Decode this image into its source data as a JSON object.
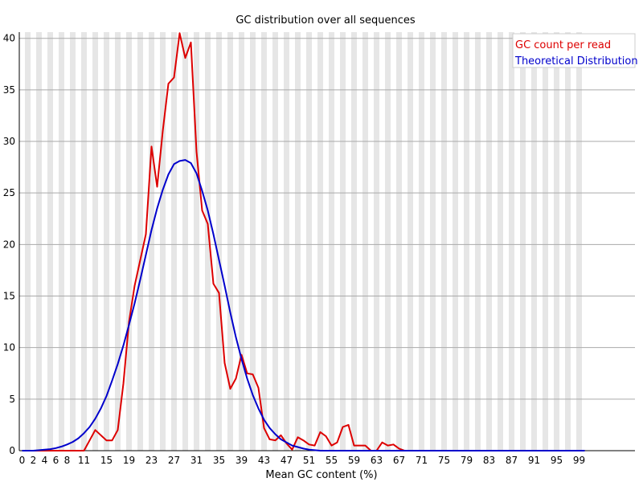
{
  "chart_data": {
    "type": "line",
    "title": "GC distribution over all sequences",
    "xlabel": "Mean GC content (%)",
    "ylabel": "",
    "xlim": [
      0,
      100
    ],
    "ylim": [
      0,
      40.6
    ],
    "x_ticks": [
      0,
      2,
      4,
      6,
      8,
      11,
      15,
      19,
      23,
      27,
      31,
      35,
      39,
      43,
      47,
      51,
      55,
      59,
      63,
      67,
      71,
      75,
      79,
      83,
      87,
      91,
      95,
      99
    ],
    "y_ticks": [
      0,
      5,
      10,
      15,
      20,
      25,
      30,
      35,
      40
    ],
    "grid": true,
    "legend_position": "top-right",
    "series": [
      {
        "name": "GC count per read",
        "color": "#dd0000",
        "x": [
          0,
          1,
          2,
          3,
          4,
          5,
          6,
          7,
          8,
          9,
          10,
          11,
          12,
          13,
          14,
          15,
          16,
          17,
          18,
          19,
          20,
          21,
          22,
          23,
          24,
          25,
          26,
          27,
          28,
          29,
          30,
          31,
          32,
          33,
          34,
          35,
          36,
          37,
          38,
          39,
          40,
          41,
          42,
          43,
          44,
          45,
          46,
          47,
          48,
          49,
          50,
          51,
          52,
          53,
          54,
          55,
          56,
          57,
          58,
          59,
          60,
          61,
          62,
          63,
          64,
          65,
          66,
          67,
          68,
          69,
          70,
          71,
          72,
          73,
          74,
          75,
          76,
          77,
          78,
          79,
          80,
          81,
          82,
          83,
          84,
          85,
          86,
          87,
          88,
          89,
          90,
          91,
          92,
          93,
          94,
          95,
          96,
          97,
          98,
          99,
          100
        ],
        "values": [
          0,
          0,
          0,
          0,
          0,
          0,
          0,
          0,
          0,
          0,
          0,
          0,
          1,
          2,
          1.5,
          1,
          1,
          2,
          6.5,
          12.5,
          16,
          18.5,
          21,
          29.5,
          25.6,
          31,
          35.6,
          36.2,
          40.5,
          38.1,
          39.6,
          29,
          23.3,
          22,
          16.2,
          15.3,
          8.5,
          6,
          7,
          9.3,
          7.5,
          7.4,
          6.1,
          2.2,
          1.1,
          1,
          1.5,
          0.7,
          0.1,
          1.3,
          1,
          0.6,
          0.5,
          1.8,
          1.4,
          0.5,
          0.8,
          2.3,
          2.5,
          0.5,
          0.5,
          0.5,
          0,
          0,
          0.8,
          0.5,
          0.6,
          0.2,
          0,
          0,
          0,
          0,
          0,
          0,
          0,
          0,
          0,
          0,
          0,
          0,
          0,
          0,
          0,
          0,
          0,
          0,
          0,
          0,
          0,
          0,
          0,
          0,
          0,
          0,
          0,
          0,
          0,
          0,
          0,
          0,
          0
        ]
      },
      {
        "name": "Theoretical Distribution",
        "color": "#0000cc",
        "x": [
          0,
          1,
          2,
          3,
          4,
          5,
          6,
          7,
          8,
          9,
          10,
          11,
          12,
          13,
          14,
          15,
          16,
          17,
          18,
          19,
          20,
          21,
          22,
          23,
          24,
          25,
          26,
          27,
          28,
          29,
          30,
          31,
          32,
          33,
          34,
          35,
          36,
          37,
          38,
          39,
          40,
          41,
          42,
          43,
          44,
          45,
          46,
          47,
          48,
          49,
          50,
          51,
          52,
          53,
          54,
          55,
          56,
          57,
          58,
          59,
          60,
          61,
          62,
          63,
          64,
          65,
          66,
          67,
          68,
          69,
          70,
          71,
          72,
          73,
          74,
          75,
          76,
          77,
          78,
          79,
          80,
          81,
          82,
          83,
          84,
          85,
          86,
          87,
          88,
          89,
          90,
          91,
          92,
          93,
          94,
          95,
          96,
          97,
          98,
          99,
          100
        ],
        "values": [
          0,
          0,
          0,
          0.05,
          0.1,
          0.15,
          0.25,
          0.4,
          0.6,
          0.85,
          1.2,
          1.7,
          2.3,
          3.1,
          4.1,
          5.3,
          6.8,
          8.4,
          10.2,
          12.2,
          14.3,
          16.6,
          19,
          21.4,
          23.5,
          25.3,
          26.8,
          27.8,
          28.1,
          28.2,
          27.9,
          26.9,
          25.2,
          23.3,
          21,
          18.5,
          16,
          13.4,
          11,
          8.9,
          7,
          5.4,
          4.1,
          3,
          2.2,
          1.6,
          1.1,
          0.8,
          0.5,
          0.35,
          0.2,
          0.1,
          0.05,
          0,
          0,
          0,
          0,
          0,
          0,
          0,
          0,
          0,
          0,
          0,
          0,
          0,
          0,
          0,
          0,
          0,
          0,
          0,
          0,
          0,
          0,
          0,
          0,
          0,
          0,
          0,
          0,
          0,
          0,
          0,
          0,
          0,
          0,
          0,
          0,
          0,
          0,
          0,
          0,
          0,
          0,
          0,
          0,
          0,
          0,
          0,
          0
        ]
      }
    ]
  }
}
